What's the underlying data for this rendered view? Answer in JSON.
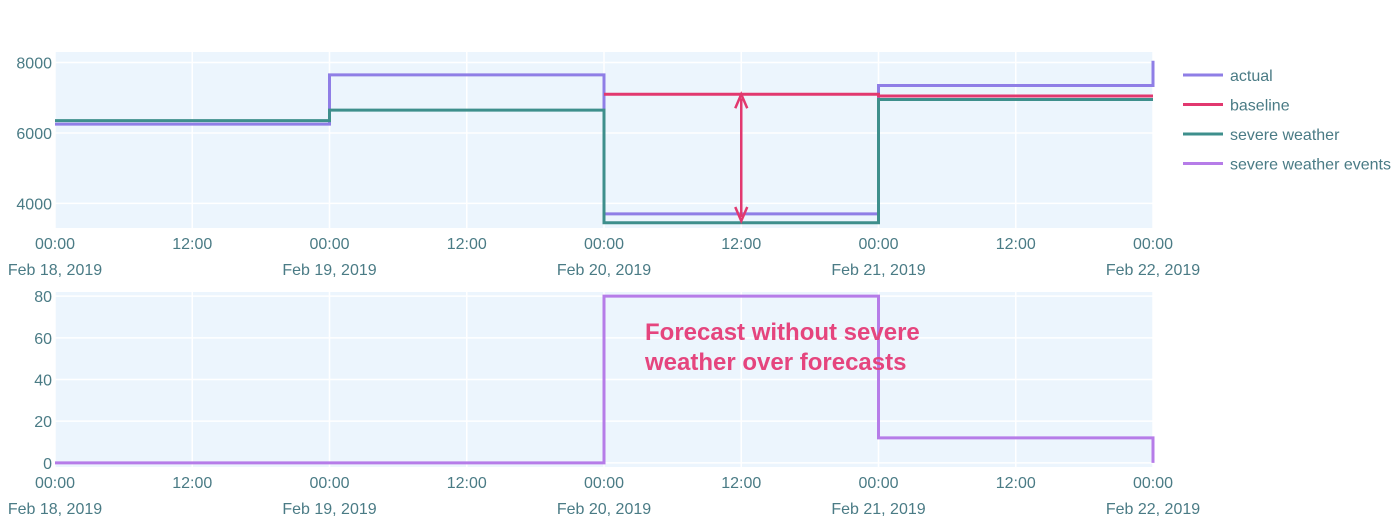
{
  "colors": {
    "plot_bg": "#ecf5fd",
    "grid": "#ffffff",
    "tick_text": "#4a7b85",
    "actual": "#8f7ee6",
    "baseline": "#e2386f",
    "severe_weather": "#3e8f8c",
    "severe_weather_events": "#b67ce8",
    "annotation": "#e5457e"
  },
  "chart_data": [
    {
      "type": "line",
      "line_shape": "step",
      "title": "",
      "xlabel": "",
      "ylabel": "",
      "xlim": [
        "2019-02-18 00:00",
        "2019-02-22 00:00"
      ],
      "ylim": [
        3300,
        8300
      ],
      "yticks": [
        4000,
        6000,
        8000
      ],
      "xticks": [
        {
          "value": "2019-02-18 00:00",
          "label": "00:00",
          "sublabel": "Feb 18, 2019"
        },
        {
          "value": "2019-02-18 12:00",
          "label": "12:00",
          "sublabel": ""
        },
        {
          "value": "2019-02-19 00:00",
          "label": "00:00",
          "sublabel": "Feb 19, 2019"
        },
        {
          "value": "2019-02-19 12:00",
          "label": "12:00",
          "sublabel": ""
        },
        {
          "value": "2019-02-20 00:00",
          "label": "00:00",
          "sublabel": "Feb 20, 2019"
        },
        {
          "value": "2019-02-20 12:00",
          "label": "12:00",
          "sublabel": ""
        },
        {
          "value": "2019-02-21 00:00",
          "label": "00:00",
          "sublabel": "Feb 21, 2019"
        },
        {
          "value": "2019-02-21 12:00",
          "label": "12:00",
          "sublabel": ""
        },
        {
          "value": "2019-02-22 00:00",
          "label": "00:00",
          "sublabel": "Feb 22, 2019"
        }
      ],
      "grid": true,
      "legend_position": "right",
      "series": [
        {
          "name": "actual",
          "color_key": "actual",
          "x": [
            "2019-02-18 00:00",
            "2019-02-19 00:00",
            "2019-02-20 00:00",
            "2019-02-21 00:00",
            "2019-02-22 00:00"
          ],
          "y": [
            6250,
            7650,
            3700,
            7350,
            8050
          ]
        },
        {
          "name": "baseline",
          "color_key": "baseline",
          "x": [
            "2019-02-20 00:00",
            "2019-02-21 00:00",
            "2019-02-22 00:00"
          ],
          "y": [
            7100,
            7050,
            7050
          ]
        },
        {
          "name": "severe weather",
          "color_key": "severe_weather",
          "x": [
            "2019-02-18 00:00",
            "2019-02-19 00:00",
            "2019-02-20 00:00",
            "2019-02-21 00:00",
            "2019-02-22 00:00"
          ],
          "y": [
            6350,
            6650,
            3450,
            6950,
            6950
          ]
        },
        {
          "name": "severe weather events",
          "color_key": "severe_weather_events",
          "x": [],
          "y": []
        }
      ],
      "annotations": [
        {
          "type": "double-arrow",
          "x": "2019-02-20 12:00",
          "y_from": 3500,
          "y_to": 7100,
          "color_key": "baseline"
        }
      ]
    },
    {
      "type": "line",
      "line_shape": "step",
      "title": "",
      "xlabel": "",
      "ylabel": "",
      "xlim": [
        "2019-02-18 00:00",
        "2019-02-22 00:00"
      ],
      "ylim": [
        -2,
        82
      ],
      "yticks": [
        0,
        20,
        40,
        60,
        80
      ],
      "xticks": [
        {
          "value": "2019-02-18 00:00",
          "label": "00:00",
          "sublabel": "Feb 18, 2019"
        },
        {
          "value": "2019-02-18 12:00",
          "label": "12:00",
          "sublabel": ""
        },
        {
          "value": "2019-02-19 00:00",
          "label": "00:00",
          "sublabel": "Feb 19, 2019"
        },
        {
          "value": "2019-02-19 12:00",
          "label": "12:00",
          "sublabel": ""
        },
        {
          "value": "2019-02-20 00:00",
          "label": "00:00",
          "sublabel": "Feb 20, 2019"
        },
        {
          "value": "2019-02-20 12:00",
          "label": "12:00",
          "sublabel": ""
        },
        {
          "value": "2019-02-21 00:00",
          "label": "00:00",
          "sublabel": "Feb 21, 2019"
        },
        {
          "value": "2019-02-21 12:00",
          "label": "12:00",
          "sublabel": ""
        },
        {
          "value": "2019-02-22 00:00",
          "label": "00:00",
          "sublabel": "Feb 22, 2019"
        }
      ],
      "grid": true,
      "series": [
        {
          "name": "severe weather events",
          "color_key": "severe_weather_events",
          "x": [
            "2019-02-18 00:00",
            "2019-02-19 00:00",
            "2019-02-20 00:00",
            "2019-02-21 00:00",
            "2019-02-22 00:00"
          ],
          "y": [
            0,
            0,
            80,
            12,
            0
          ]
        }
      ],
      "annotations": [
        {
          "type": "text",
          "lines": [
            "Forecast without severe",
            "weather over forecasts"
          ],
          "color_key": "annotation"
        }
      ]
    }
  ]
}
